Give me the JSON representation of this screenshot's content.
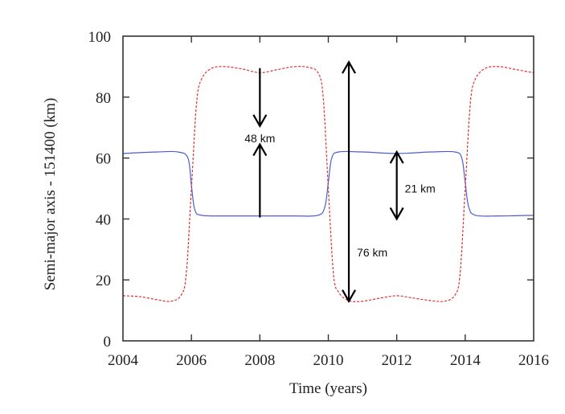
{
  "chart_data": {
    "type": "line",
    "title": "",
    "xlabel": "Time (years)",
    "ylabel": "Semi-major axis - 151400 (km)",
    "xlim": [
      2004,
      2016
    ],
    "ylim": [
      0,
      100
    ],
    "xticks": [
      2004,
      2006,
      2008,
      2010,
      2012,
      2014,
      2016
    ],
    "xtick_labels": [
      "2004",
      "2006",
      "2008",
      "2010",
      "2012",
      "2014",
      "2016"
    ],
    "yticks": [
      0,
      20,
      40,
      60,
      80,
      100
    ],
    "ytick_labels": [
      "0",
      "20",
      "40",
      "60",
      "80",
      "100"
    ],
    "grid": false,
    "legend": "none",
    "series": [
      {
        "name": "blue-solid",
        "color": "#4a5fd0",
        "style": "solid",
        "x": [
          2004.0,
          2005.0,
          2005.6,
          2005.9,
          2006.0,
          2006.1,
          2006.3,
          2007.0,
          2008.0,
          2009.0,
          2009.7,
          2009.9,
          2010.0,
          2010.1,
          2010.3,
          2011.0,
          2012.0,
          2013.0,
          2013.7,
          2013.9,
          2014.0,
          2014.1,
          2014.3,
          2015.0,
          2016.0
        ],
        "y": [
          61.5,
          62.0,
          62.0,
          60.0,
          51.0,
          43.0,
          41.2,
          41.0,
          41.0,
          41.0,
          41.2,
          44.0,
          52.0,
          60.0,
          62.0,
          62.0,
          61.5,
          62.0,
          62.0,
          60.0,
          52.0,
          44.0,
          41.2,
          41.0,
          41.2
        ]
      },
      {
        "name": "red-dashed",
        "color": "#e03030",
        "style": "dashed",
        "x": [
          2004.0,
          2004.5,
          2005.0,
          2005.4,
          2005.7,
          2005.85,
          2006.0,
          2006.15,
          2006.3,
          2006.6,
          2007.0,
          2007.5,
          2008.0,
          2008.5,
          2009.0,
          2009.4,
          2009.7,
          2009.85,
          2010.0,
          2010.15,
          2010.3,
          2010.6,
          2011.0,
          2011.5,
          2012.0,
          2012.5,
          2013.0,
          2013.4,
          2013.7,
          2013.85,
          2014.0,
          2014.15,
          2014.3,
          2014.6,
          2015.0,
          2015.5,
          2016.0
        ],
        "y": [
          14.8,
          14.5,
          13.5,
          13.0,
          15.0,
          22.0,
          50.0,
          78.0,
          86.0,
          89.5,
          90.0,
          89.2,
          88.0,
          89.0,
          90.0,
          89.8,
          88.0,
          80.0,
          50.0,
          22.0,
          16.0,
          13.2,
          13.0,
          14.0,
          14.8,
          14.0,
          13.2,
          13.0,
          15.0,
          22.0,
          50.0,
          78.0,
          86.0,
          89.5,
          90.0,
          89.0,
          88.0
        ]
      }
    ],
    "annotations": [
      {
        "label": "48 km",
        "x": 2008.0,
        "label_y": 66.5,
        "type": "converging-arrows",
        "from_top": 89.5,
        "to_top": 70.5,
        "from_bottom": 40.5,
        "to_bottom": 64.5
      },
      {
        "label": "76 km",
        "x": 2010.6,
        "label_y": 29.0,
        "type": "double-arrow",
        "y_top": 91.5,
        "y_bottom": 13.0
      },
      {
        "label": "21 km",
        "x": 2012.0,
        "label_y": 50.0,
        "type": "double-arrow",
        "y_top": 62.0,
        "y_bottom": 40.0
      }
    ]
  }
}
